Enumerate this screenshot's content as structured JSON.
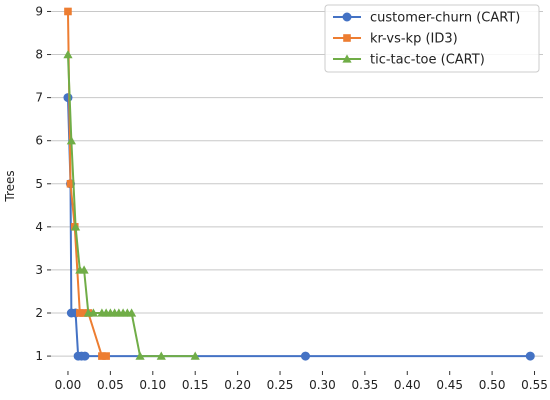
{
  "chart_data": {
    "type": "line",
    "ylabel": "Trees",
    "xlabel": "",
    "xlim": [
      -0.02,
      0.56
    ],
    "ylim": [
      0.7,
      9.15
    ],
    "xticks": [
      0.0,
      0.05,
      0.1,
      0.15,
      0.2,
      0.25,
      0.3,
      0.35,
      0.4,
      0.45,
      0.5,
      0.55
    ],
    "xtick_labels": [
      "0.00",
      "0.05",
      "0.10",
      "0.15",
      "0.20",
      "0.25",
      "0.30",
      "0.35",
      "0.40",
      "0.45",
      "0.50",
      "0.55"
    ],
    "yticks": [
      1,
      2,
      3,
      4,
      5,
      6,
      7,
      8,
      9
    ],
    "ytick_labels": [
      "1",
      "2",
      "3",
      "4",
      "5",
      "6",
      "7",
      "8",
      "9"
    ],
    "grid": "horizontal",
    "legend_position": "top-right",
    "series": [
      {
        "name": "customer-churn (CART)",
        "color": "#4472c4",
        "marker": "circle",
        "x": [
          0.0,
          0.003,
          0.004,
          0.009,
          0.012,
          0.016,
          0.02,
          0.28,
          0.545
        ],
        "y": [
          7,
          5,
          2,
          2,
          1,
          1,
          1,
          1,
          1
        ]
      },
      {
        "name": "kr-vs-kp (ID3)",
        "color": "#ed7d31",
        "marker": "square",
        "x": [
          0.0,
          0.003,
          0.008,
          0.014,
          0.018,
          0.024,
          0.04,
          0.045
        ],
        "y": [
          9,
          5,
          4,
          2,
          2,
          2,
          1,
          1
        ]
      },
      {
        "name": "tic-tac-toe (CART)",
        "color": "#70ad47",
        "marker": "triangle",
        "x": [
          0.0,
          0.004,
          0.009,
          0.014,
          0.019,
          0.024,
          0.03,
          0.04,
          0.045,
          0.05,
          0.055,
          0.06,
          0.065,
          0.07,
          0.075,
          0.085,
          0.11,
          0.15
        ],
        "y": [
          8,
          6,
          4,
          3,
          3,
          2,
          2,
          2,
          2,
          2,
          2,
          2,
          2,
          2,
          2,
          1,
          1,
          1
        ]
      }
    ]
  }
}
